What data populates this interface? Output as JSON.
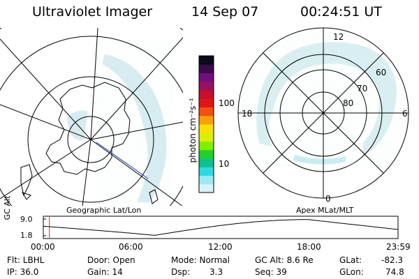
{
  "header": {
    "instrument": "Ultraviolet Imager",
    "date": "14 Sep 07",
    "time": "00:24:51 UT"
  },
  "colorbar": {
    "unit_label": "photon cm⁻²s⁻¹",
    "ticks": [
      "100",
      "10"
    ],
    "colors": [
      "#0a0a1a",
      "#3a0a4a",
      "#70107a",
      "#9a1060",
      "#c8102a",
      "#e01515",
      "#f05010",
      "#f8a000",
      "#f8e000",
      "#d8f000",
      "#80f000",
      "#20d030",
      "#10c090",
      "#30d8e0",
      "#a0e8f0",
      "#d8f4f8"
    ]
  },
  "left_map": {
    "caption": "Geographic Lat/Lon"
  },
  "right_map": {
    "caption": "Apex MLat/MLT",
    "mlt_labels": [
      "12",
      "18",
      "6",
      "0"
    ],
    "lat_labels": [
      "60",
      "70",
      "80"
    ]
  },
  "timeline": {
    "ylabel": "GC Alt",
    "yticks": [
      "9.0",
      "1.8"
    ],
    "xticks": [
      "00:00",
      "06:00",
      "12:00",
      "18:00",
      "23:59"
    ],
    "marker_time": "00:24:51",
    "series_color": "#000000",
    "marker_color": "#d02020"
  },
  "status": {
    "filter": "Flt: LBHL",
    "ip": "IP: 36.0",
    "door": "Door: Open",
    "gain": "Gain: 14",
    "mode": "Mode: Normal",
    "dsp_label": "Dsp:",
    "dsp_value": "3.3",
    "gc_alt": "GC Alt: 8.6 Re",
    "seq": "Seq: 39",
    "glat_label": "GLat:",
    "glat_value": "-82.3",
    "glon_label": "GLon:",
    "glon_value": "74.8"
  }
}
